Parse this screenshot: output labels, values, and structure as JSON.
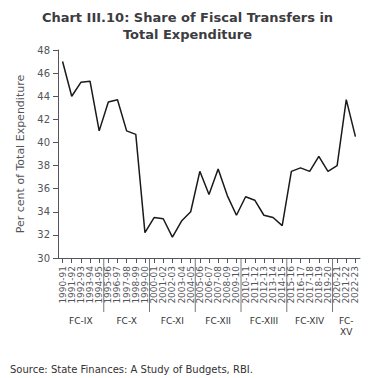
{
  "chart_data": {
    "type": "line",
    "title": "Chart III.10: Share of Fiscal Transfers in\nTotal Expenditure",
    "ylabel": "Per cent of Total Expenditure",
    "annotations": [
      "Source: State Finances: A Study of Budgets, RBI."
    ],
    "categories": [
      "1990-91",
      "1991-92",
      "1992-93",
      "1993-94",
      "1994-95",
      "1995-96",
      "1996-97",
      "1997-98",
      "1998-99",
      "1999-00",
      "2000-01",
      "2001-02",
      "2002-03",
      "2003-04",
      "2004-05",
      "2005-06",
      "2006-07",
      "2007-08",
      "2008-09",
      "2009-10",
      "2010-11",
      "2011-12",
      "2012-13",
      "2013-14",
      "2014-15",
      "2015-16",
      "2016-17",
      "2017-18",
      "2018-19",
      "2019-20",
      "2020-21",
      "2021-22",
      "2022-23"
    ],
    "values": [
      47.0,
      44.0,
      45.2,
      45.3,
      41.0,
      43.5,
      43.7,
      41.0,
      40.7,
      32.2,
      33.5,
      33.4,
      31.8,
      33.2,
      34.0,
      37.5,
      35.5,
      37.7,
      35.4,
      33.7,
      35.3,
      35.0,
      33.7,
      33.5,
      32.8,
      37.5,
      37.8,
      37.5,
      38.8,
      37.5,
      38.0,
      43.7,
      40.5
    ],
    "color": "#1a1a1a",
    "ylim": [
      30,
      48
    ],
    "yticks": [
      30,
      32,
      34,
      36,
      38,
      40,
      42,
      44,
      46,
      48
    ],
    "grid": false,
    "groups": [
      {
        "label": "FC-IX",
        "from": "1990-91",
        "to": "1994-95"
      },
      {
        "label": "FC-X",
        "from": "1995-96",
        "to": "1999-00"
      },
      {
        "label": "FC-XI",
        "from": "2000-01",
        "to": "2004-05"
      },
      {
        "label": "FC-XII",
        "from": "2005-06",
        "to": "2009-10"
      },
      {
        "label": "FC-XIII",
        "from": "2010-11",
        "to": "2014-15"
      },
      {
        "label": "FC-XIV",
        "from": "2015-16",
        "to": "2019-20"
      },
      {
        "label": "FC-\nXV",
        "from": "2020-21",
        "to": "2022-23"
      }
    ]
  }
}
